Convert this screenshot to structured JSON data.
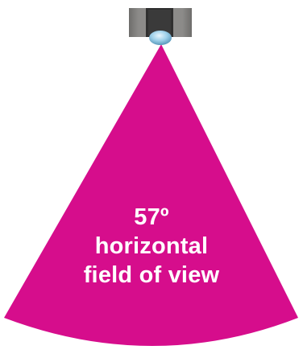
{
  "label": {
    "angle": "57º",
    "line2": "horizontal",
    "line3": "field of view"
  },
  "colors": {
    "cone": "#d60d8c",
    "text": "#ffffff",
    "sensor_body": "#807f7d",
    "sensor_dark": "#2f2f2f",
    "lens": "#9ccfe9"
  },
  "fov_degrees": 57
}
